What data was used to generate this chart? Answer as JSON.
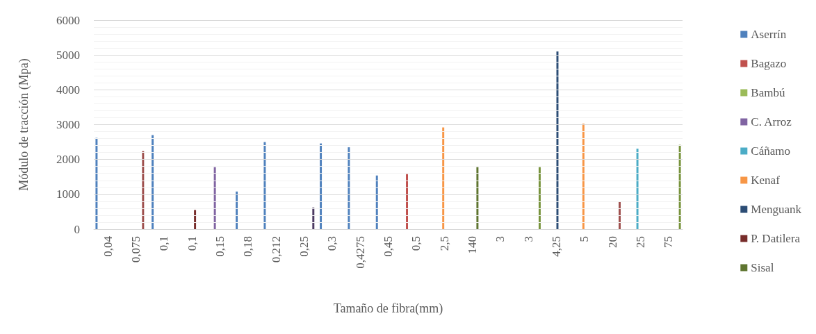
{
  "chart_data": {
    "type": "bar",
    "xlabel": "Tamaño de fibra(mm)",
    "ylabel": "Módulo de tracción (Mpa)",
    "categories": [
      "0,04",
      "0,075",
      "0,1",
      "0,1",
      "0,15",
      "0,18",
      "0,212",
      "0,25",
      "0,3",
      "0,4275",
      "0,45",
      "0,5",
      "2,5",
      "140",
      "3",
      "3",
      "4,25",
      "5",
      "20",
      "25",
      "75"
    ],
    "series": [
      {
        "name": "Aserrín",
        "color": "#4f81bd",
        "values": [
          2620,
          null,
          2700,
          null,
          null,
          1080,
          2500,
          null,
          2460,
          2350,
          1540,
          null,
          null,
          null,
          null,
          null,
          null,
          null,
          null,
          null,
          null
        ]
      },
      {
        "name": "Bagazo",
        "color": "#c0504d",
        "values": [
          null,
          null,
          null,
          null,
          null,
          null,
          null,
          null,
          null,
          null,
          null,
          1580,
          null,
          null,
          null,
          null,
          null,
          null,
          null,
          null,
          null
        ]
      },
      {
        "name": "Bambú",
        "color": "#9bbb59",
        "values": [
          null,
          null,
          null,
          null,
          null,
          null,
          null,
          null,
          null,
          null,
          null,
          null,
          null,
          null,
          null,
          null,
          null,
          null,
          null,
          null,
          null
        ]
      },
      {
        "name": "C. Arroz",
        "color": "#8064a2",
        "values": [
          null,
          null,
          null,
          null,
          1780,
          null,
          null,
          null,
          null,
          null,
          null,
          null,
          null,
          null,
          null,
          null,
          null,
          null,
          null,
          null,
          null
        ]
      },
      {
        "name": "Cáñamo",
        "color": "#4bacc6",
        "values": [
          null,
          null,
          null,
          null,
          null,
          null,
          null,
          null,
          null,
          null,
          null,
          null,
          null,
          null,
          null,
          null,
          null,
          null,
          null,
          2310,
          null
        ]
      },
      {
        "name": "Kenaf",
        "color": "#f79646",
        "values": [
          null,
          null,
          null,
          null,
          null,
          null,
          null,
          null,
          null,
          null,
          null,
          null,
          2920,
          null,
          null,
          null,
          null,
          3030,
          null,
          null,
          null
        ]
      },
      {
        "name": "Menguank",
        "color": "#2c4d75",
        "values": [
          null,
          null,
          null,
          null,
          null,
          null,
          null,
          null,
          null,
          null,
          null,
          null,
          null,
          null,
          null,
          null,
          5100,
          null,
          null,
          null,
          null
        ]
      },
      {
        "name": "P. Datilera",
        "color": "#772c2a",
        "values": [
          null,
          null,
          null,
          550,
          null,
          null,
          null,
          null,
          null,
          null,
          null,
          null,
          null,
          null,
          null,
          null,
          null,
          null,
          null,
          null,
          null
        ]
      },
      {
        "name": "Sisal",
        "color": "#5f7530",
        "values": [
          null,
          null,
          null,
          null,
          null,
          null,
          null,
          null,
          null,
          null,
          null,
          null,
          null,
          1780,
          null,
          null,
          null,
          null,
          null,
          null,
          null
        ]
      },
      {
        "color": "#9e4f4d",
        "values": [
          null,
          2240,
          null,
          null,
          null,
          null,
          null,
          null,
          null,
          null,
          null,
          null,
          null,
          null,
          null,
          null,
          null,
          null,
          780,
          null,
          null
        ]
      },
      {
        "color": "#4d3b62",
        "values": [
          null,
          null,
          null,
          null,
          null,
          null,
          null,
          620,
          null,
          null,
          null,
          null,
          null,
          null,
          null,
          null,
          null,
          null,
          null,
          null,
          null
        ]
      },
      {
        "color": "#77933c",
        "values": [
          null,
          null,
          null,
          null,
          null,
          null,
          null,
          null,
          null,
          null,
          null,
          null,
          null,
          null,
          null,
          1780,
          null,
          null,
          null,
          null,
          2420
        ]
      }
    ],
    "ylim": [
      0,
      6000
    ],
    "yticks": [
      0,
      {
        "value": 200,
        "label": null
      },
      {
        "value": 400,
        "label": null
      },
      {
        "value": 600,
        "label": null
      },
      {
        "value": 800,
        "label": null
      },
      1000,
      {
        "value": 1200,
        "label": null
      },
      {
        "value": 1400,
        "label": null
      },
      {
        "value": 1600,
        "label": null
      },
      {
        "value": 1800,
        "label": null
      },
      2000,
      {
        "value": 2200,
        "label": null
      },
      {
        "value": 2400,
        "label": null
      },
      {
        "value": 2600,
        "label": null
      },
      {
        "value": 2800,
        "label": null
      },
      3000,
      {
        "value": 3200,
        "label": null
      },
      {
        "value": 3400,
        "label": null
      },
      {
        "value": 3600,
        "label": null
      },
      {
        "value": 3800,
        "label": null
      },
      4000,
      {
        "value": 4200,
        "label": null
      },
      {
        "value": 4400,
        "label": null
      },
      {
        "value": 4600,
        "label": null
      },
      {
        "value": 4800,
        "label": null
      },
      5000,
      {
        "value": 5200,
        "label": null
      },
      {
        "value": 5400,
        "label": null
      },
      {
        "value": 5600,
        "label": null
      },
      {
        "value": 5800,
        "label": null
      },
      6000
    ],
    "grid": "y",
    "legend": "right"
  }
}
